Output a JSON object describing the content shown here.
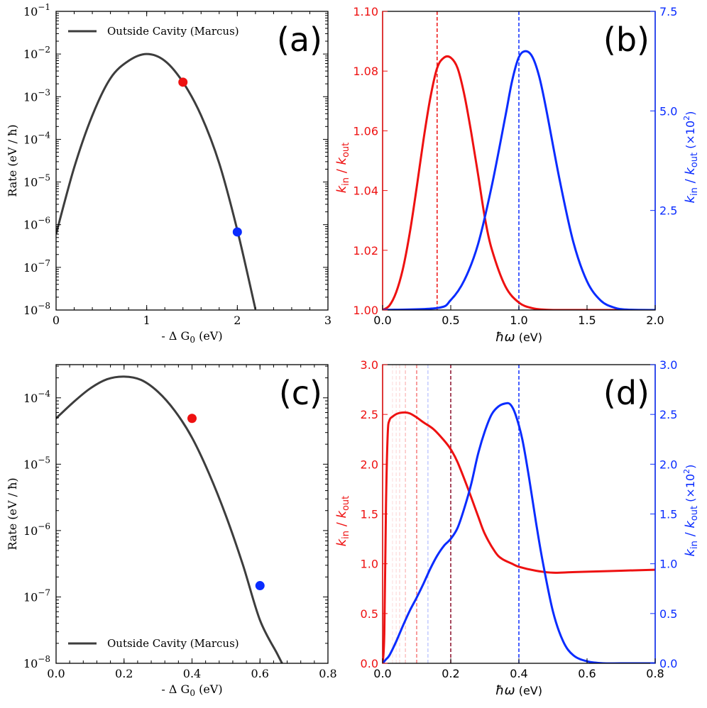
{
  "colors": {
    "marcus": "#3d3d3d",
    "red": "#ee1111",
    "blue": "#0a2cff",
    "darkred": "#8b0f2a"
  },
  "chart_data": [
    {
      "id": "a",
      "type": "line",
      "panel_label": "(a)",
      "xlabel": "- Δ G0 (eV)",
      "ylabel": "Rate (eV / ħ)",
      "xlim": [
        0,
        3
      ],
      "ylim_log10": [
        -8,
        -1
      ],
      "yscale": "log",
      "xticks": [
        0,
        1,
        2,
        3
      ],
      "xtick_labels": [
        "0",
        "1",
        "2",
        "3"
      ],
      "yticks_exp": [
        -8,
        -7,
        -6,
        -5,
        -4,
        -3,
        -2,
        -1
      ],
      "legend": {
        "label": "Outside Cavity (Marcus)",
        "location": "upper-left"
      },
      "series": [
        {
          "name": "Outside Cavity (Marcus)",
          "x": [
            0.0,
            0.2,
            0.4,
            0.6,
            0.8,
            1.0,
            1.2,
            1.4,
            1.6,
            1.8,
            2.0,
            2.2
          ],
          "log10_y": [
            -6.22,
            -4.66,
            -3.44,
            -2.57,
            -2.16,
            -2.0,
            -2.16,
            -2.66,
            -3.44,
            -4.56,
            -6.13,
            -7.98
          ]
        }
      ],
      "markers": [
        {
          "x": 1.4,
          "log10_y": -2.66,
          "color": "red"
        },
        {
          "x": 2.0,
          "log10_y": -6.17,
          "color": "blue"
        }
      ]
    },
    {
      "id": "b",
      "type": "line",
      "panel_label": "(b)",
      "xlabel": "ħω (eV)",
      "ylabel_left": "kin / kout",
      "ylabel_right": "kin / kout (×10²)",
      "xlim": [
        0,
        2.0
      ],
      "ylim_left": [
        1.0,
        1.1
      ],
      "ylim_right": [
        0,
        7.5
      ],
      "xticks": [
        0,
        0.5,
        1.0,
        1.5,
        2.0
      ],
      "xtick_labels": [
        "0.0",
        "0.5",
        "1.0",
        "1.5",
        "2.0"
      ],
      "yticks_left": [
        "1.00",
        "1.02",
        "1.04",
        "1.06",
        "1.08",
        "1.10"
      ],
      "yticks_right": [
        "2.5",
        "5.0",
        "7.5"
      ],
      "vlines": [
        {
          "x": 0.4,
          "color": "red"
        },
        {
          "x": 1.0,
          "color": "blue"
        }
      ],
      "series": [
        {
          "axis": "left",
          "color": "red",
          "x": [
            0.0,
            0.05,
            0.1,
            0.15,
            0.2,
            0.25,
            0.3,
            0.35,
            0.4,
            0.45,
            0.5,
            0.55,
            0.6,
            0.65,
            0.7,
            0.75,
            0.8,
            0.9,
            1.0,
            1.1,
            1.2,
            1.3,
            1.4,
            1.6,
            2.0
          ],
          "y": [
            1.0,
            1.0015,
            1.006,
            1.014,
            1.026,
            1.041,
            1.057,
            1.071,
            1.081,
            1.0845,
            1.0845,
            1.081,
            1.072,
            1.0595,
            1.0455,
            1.031,
            1.0205,
            1.008,
            1.0025,
            1.0006,
            1.0001,
            1.0,
            1.0,
            1.0,
            1.0
          ]
        },
        {
          "axis": "right",
          "color": "blue",
          "x": [
            0.0,
            0.4,
            0.5,
            0.6,
            0.7,
            0.8,
            0.9,
            0.95,
            1.0,
            1.05,
            1.1,
            1.15,
            1.2,
            1.3,
            1.4,
            1.5,
            1.6,
            1.7,
            1.8,
            2.0
          ],
          "y": [
            0.0,
            0.05,
            0.25,
            0.75,
            1.65,
            3.1,
            4.85,
            5.75,
            6.35,
            6.5,
            6.35,
            5.85,
            5.05,
            3.25,
            1.7,
            0.72,
            0.24,
            0.06,
            0.01,
            0.0
          ]
        }
      ]
    },
    {
      "id": "c",
      "type": "line",
      "panel_label": "(c)",
      "xlabel": "- Δ G0 (eV)",
      "ylabel": "Rate (eV / ħ)",
      "xlim": [
        0,
        0.8
      ],
      "ylim_log10": [
        -8,
        -3.5
      ],
      "yscale": "log",
      "xticks": [
        0.0,
        0.2,
        0.4,
        0.6,
        0.8
      ],
      "xtick_labels": [
        "0.0",
        "0.2",
        "0.4",
        "0.6",
        "0.8"
      ],
      "yticks_exp": [
        -8,
        -7,
        -6,
        -5,
        -4
      ],
      "legend": {
        "label": "Outside Cavity (Marcus)",
        "location": "lower-left"
      },
      "series": [
        {
          "name": "Outside Cavity (Marcus)",
          "x": [
            0.0,
            0.05,
            0.1,
            0.15,
            0.2,
            0.25,
            0.3,
            0.35,
            0.4,
            0.45,
            0.5,
            0.55,
            0.6,
            0.65,
            0.665
          ],
          "log10_y": [
            -4.31,
            -4.07,
            -3.86,
            -3.72,
            -3.68,
            -3.73,
            -3.91,
            -4.2,
            -4.6,
            -5.14,
            -5.78,
            -6.52,
            -7.35,
            -7.85,
            -8.0
          ]
        }
      ],
      "markers": [
        {
          "x": 0.4,
          "log10_y": -4.31,
          "color": "red"
        },
        {
          "x": 0.6,
          "log10_y": -6.83,
          "color": "blue"
        }
      ]
    },
    {
      "id": "d",
      "type": "line",
      "panel_label": "(d)",
      "xlabel": "ħω (eV)",
      "ylabel_left": "kin / kout",
      "ylabel_right": "kin / kout (×10²)",
      "xlim": [
        0,
        0.8
      ],
      "ylim_left": [
        0,
        3.0
      ],
      "ylim_right": [
        0,
        3.0
      ],
      "xticks": [
        0.0,
        0.2,
        0.4,
        0.6,
        0.8
      ],
      "xtick_labels": [
        "0.0",
        "0.2",
        "0.4",
        "0.6",
        "0.8"
      ],
      "yticks_left": [
        "0.0",
        "0.5",
        "1.0",
        "1.5",
        "2.0",
        "2.5",
        "3.0"
      ],
      "yticks_right": [
        "0.0",
        "0.5",
        "1.0",
        "1.5",
        "2.0",
        "2.5",
        "3.0"
      ],
      "vlines": [
        {
          "x": 0.2,
          "color": "darkred"
        },
        {
          "x": 0.4,
          "color": "blue"
        },
        {
          "x": 0.1,
          "color": "red",
          "opacity": 0.55
        },
        {
          "x": 0.133,
          "color": "blue",
          "opacity": 0.25
        },
        {
          "x": 0.067,
          "color": "red",
          "opacity": 0.25
        },
        {
          "x": 0.05,
          "color": "red",
          "opacity": 0.15
        },
        {
          "x": 0.04,
          "color": "red",
          "opacity": 0.12
        },
        {
          "x": 0.029,
          "color": "red",
          "opacity": 0.1
        }
      ],
      "series": [
        {
          "axis": "left",
          "color": "red",
          "x": [
            0.0,
            0.005,
            0.01,
            0.015,
            0.02,
            0.03,
            0.045,
            0.065,
            0.08,
            0.1,
            0.12,
            0.15,
            0.18,
            0.2,
            0.22,
            0.25,
            0.28,
            0.3,
            0.33,
            0.35,
            0.38,
            0.4,
            0.45,
            0.5,
            0.55,
            0.6,
            0.7,
            0.8
          ],
          "y": [
            0.0,
            0.3,
            1.6,
            2.3,
            2.44,
            2.48,
            2.51,
            2.52,
            2.51,
            2.47,
            2.42,
            2.35,
            2.24,
            2.15,
            2.02,
            1.76,
            1.48,
            1.3,
            1.12,
            1.05,
            1.0,
            0.97,
            0.93,
            0.91,
            0.915,
            0.92,
            0.93,
            0.94
          ]
        },
        {
          "axis": "right",
          "color": "blue",
          "x": [
            0.0,
            0.01,
            0.02,
            0.04,
            0.06,
            0.08,
            0.1,
            0.12,
            0.14,
            0.16,
            0.18,
            0.2,
            0.22,
            0.24,
            0.26,
            0.28,
            0.3,
            0.32,
            0.34,
            0.36,
            0.375,
            0.39,
            0.41,
            0.43,
            0.45,
            0.47,
            0.5,
            0.53,
            0.56,
            0.6,
            0.65,
            0.7,
            0.8
          ],
          "y": [
            0.0,
            0.04,
            0.08,
            0.22,
            0.38,
            0.53,
            0.66,
            0.8,
            0.95,
            1.08,
            1.18,
            1.25,
            1.36,
            1.56,
            1.8,
            2.1,
            2.33,
            2.5,
            2.58,
            2.61,
            2.6,
            2.5,
            2.25,
            1.86,
            1.42,
            1.02,
            0.52,
            0.22,
            0.08,
            0.02,
            0.0,
            0.0,
            0.0
          ]
        }
      ]
    }
  ]
}
